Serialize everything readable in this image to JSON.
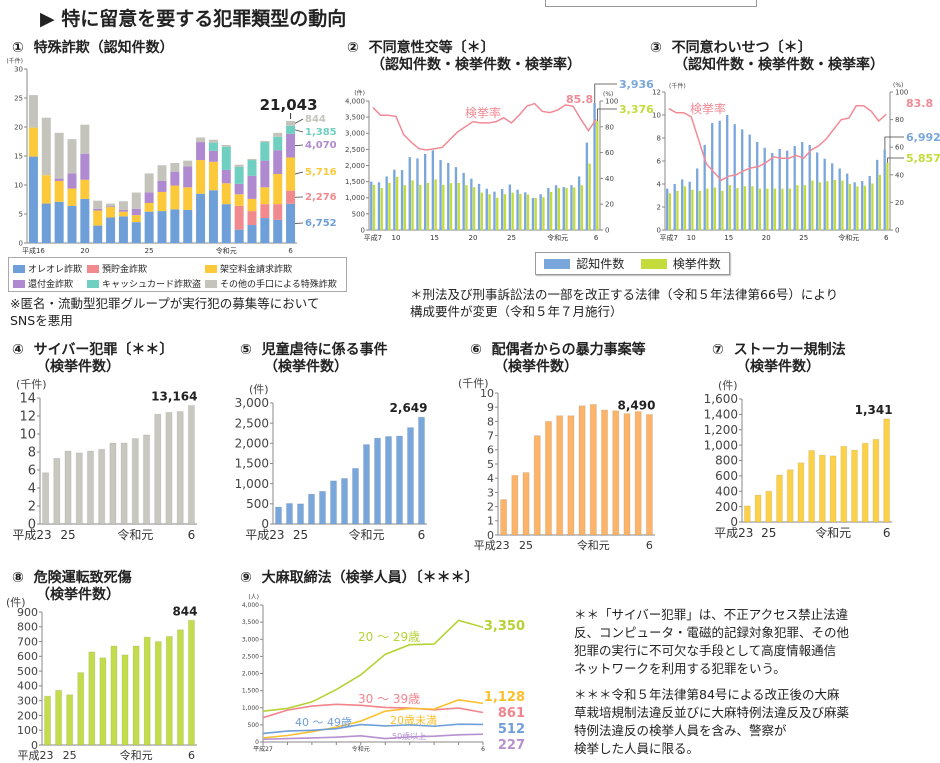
{
  "page_title": "▶ 特に留意を要する犯罪類型の動向",
  "legend_main": {
    "items": [
      {
        "label": "オレオレ詐欺",
        "color": "#6f9fd8"
      },
      {
        "label": "預貯金詐欺",
        "color": "#f08a8e"
      },
      {
        "label": "架空料金請求詐欺",
        "color": "#fcc93a"
      },
      {
        "label": "還付金詐欺",
        "color": "#b08ad0"
      },
      {
        "label": "キャッシュカード詐欺盗",
        "color": "#6fcfc0"
      },
      {
        "label": "その他の手口による特殊詐欺",
        "color": "#c4c4bc"
      }
    ]
  },
  "legend_sexual": {
    "items": [
      {
        "label": "認知件数",
        "color": "#79a7dc"
      },
      {
        "label": "検挙件数",
        "color": "#c3dc3c"
      }
    ]
  },
  "notes": {
    "fraud": [
      "※匿名・流動型犯罪グループが実行犯の募集等において",
      "SNSを悪用"
    ],
    "sexual": [
      "＊刑法及び刑事訴訟法の一部を改正する法律（令和５年法律第66号）により",
      "構成要件が変更（令和５年７月施行）"
    ],
    "cyber": [
      "＊＊「サイバー犯罪」は、不正アクセス禁止法違",
      "反、コンピュータ・電磁的記録対象犯罪、その他",
      "犯罪の実行に不可欠な手段として高度情報通信",
      "ネットワークを利用する犯罪をいう。"
    ],
    "cannabis": [
      "＊＊＊令和５年法律第84号による改正後の大麻",
      "草栽培規制法違反並びに大麻特例法違反及び麻薬",
      "特例法違反の検挙人員を含み、警察が",
      "検挙した人員に限る。"
    ]
  },
  "chart_data": [
    {
      "type": "bar",
      "stacked": true,
      "num": "①",
      "title": "特殊詐欺（認知件数）",
      "subtitle": "",
      "unit": "(千件)",
      "ylim": [
        0,
        30
      ],
      "yticks": [
        0,
        5,
        10,
        15,
        20,
        25,
        30
      ],
      "categories_count": 21,
      "xticks": [
        {
          "i": 0,
          "label": "平成16"
        },
        {
          "i": 4,
          "label": "20"
        },
        {
          "i": 9,
          "label": "25"
        },
        {
          "i": 15,
          "label": "令和元"
        },
        {
          "i": 20,
          "label": "6"
        }
      ],
      "series": [
        {
          "name": "オレオレ詐欺",
          "color": "#6f9fd8",
          "values": [
            14.9,
            6.8,
            7.1,
            6.4,
            7.6,
            3.0,
            4.4,
            4.6,
            3.6,
            5.4,
            5.5,
            5.8,
            5.7,
            8.5,
            9.1,
            6.7,
            2.3,
            3.1,
            4.3,
            4.0,
            6.752
          ],
          "end_label": "6,752"
        },
        {
          "name": "預貯金詐欺",
          "color": "#f08a8e",
          "values": [
            0,
            0,
            0,
            0,
            0,
            0,
            0,
            0,
            0,
            0,
            0,
            0,
            0,
            0,
            0,
            0,
            4.1,
            2.4,
            2.4,
            2.7,
            2.276
          ],
          "end_label": "2,276"
        },
        {
          "name": "架空料金請求詐欺",
          "color": "#fcc93a",
          "values": [
            5.0,
            4.9,
            3.6,
            3.0,
            3.3,
            2.6,
            1.8,
            0.8,
            1.2,
            1.5,
            3.3,
            4.1,
            3.9,
            5.8,
            4.9,
            3.6,
            2.0,
            2.1,
            2.9,
            5.2,
            5.716
          ],
          "end_label": "5,716"
        },
        {
          "name": "還付金詐欺",
          "color": "#b08ad0",
          "values": [
            0,
            0,
            0.4,
            2.6,
            4.5,
            0.3,
            0.1,
            0.3,
            1.1,
            1.8,
            1.9,
            2.4,
            3.6,
            3.1,
            1.9,
            2.3,
            1.8,
            4.0,
            4.6,
            4.1,
            4.07
          ],
          "end_label": "4,070"
        },
        {
          "name": "キャッシュカード詐欺盗",
          "color": "#6fcfc0",
          "values": [
            0,
            0,
            0,
            0,
            0,
            0,
            0,
            0,
            0,
            0,
            0,
            0,
            0,
            0,
            1.4,
            4.0,
            2.9,
            2.7,
            3.2,
            2.3,
            1.385
          ],
          "end_label": "1,385"
        },
        {
          "name": "その他の手口による特殊詐欺",
          "color": "#c4c4bc",
          "values": [
            5.6,
            9.9,
            7.9,
            5.9,
            5.0,
            1.4,
            0.5,
            1.5,
            2.8,
            3.3,
            2.7,
            1.5,
            1.0,
            0.8,
            0.5,
            0.3,
            0.4,
            0.2,
            0.2,
            0.7,
            0.844
          ],
          "end_label": "844"
        }
      ],
      "total_label": "21,043"
    },
    {
      "type": "bar+line",
      "num": "②",
      "title": "不同意性交等〔＊〕",
      "subtitle": "（認知件数・検挙件数・検挙率）",
      "unit": "(件)",
      "unit2": "(%)",
      "ylim": [
        0,
        4000
      ],
      "yticks": [
        0,
        500,
        1000,
        1500,
        2000,
        2500,
        3000,
        3500,
        4000
      ],
      "y2lim": [
        0,
        100
      ],
      "y2ticks": [
        0,
        20,
        40,
        60,
        80,
        100
      ],
      "categories_count": 30,
      "xticks": [
        {
          "i": 0,
          "label": "平成7"
        },
        {
          "i": 3,
          "label": "10"
        },
        {
          "i": 8,
          "label": "15"
        },
        {
          "i": 13,
          "label": "20"
        },
        {
          "i": 18,
          "label": "25"
        },
        {
          "i": 24,
          "label": "令和元"
        },
        {
          "i": 29,
          "label": "6"
        }
      ],
      "series": [
        {
          "name": "認知件数",
          "color": "#79a7dc",
          "values": [
            1500,
            1480,
            1660,
            1870,
            1860,
            2260,
            2220,
            2360,
            2470,
            2170,
            2080,
            1950,
            1770,
            1590,
            1430,
            1280,
            1190,
            1270,
            1410,
            1250,
            1170,
            990,
            1110,
            1300,
            1390,
            1330,
            1390,
            1660,
            2710,
            3936
          ],
          "end_label": "3,936"
        },
        {
          "name": "検挙件数",
          "color": "#c3dc3c",
          "values": [
            1400,
            1300,
            1460,
            1650,
            1390,
            1540,
            1400,
            1460,
            1570,
            1400,
            1450,
            1460,
            1390,
            1330,
            1160,
            1110,
            1000,
            1110,
            1160,
            1120,
            1100,
            990,
            1020,
            1180,
            1300,
            1300,
            1320,
            1390,
            2060,
            3376
          ],
          "end_label": "3,376"
        },
        {
          "name": "検挙率",
          "color": "#f28a96",
          "axis": "right",
          "values": [
            95,
            89,
            89,
            88,
            74,
            68,
            63,
            62,
            63,
            64,
            70,
            76,
            80,
            84,
            83,
            83,
            84,
            87,
            83,
            89,
            96,
            98,
            92,
            91,
            93,
            97,
            96,
            86,
            77,
            85.8
          ],
          "end_label": "85.8"
        }
      ]
    },
    {
      "type": "bar+line",
      "num": "③",
      "title": "不同意わいせつ〔＊〕",
      "subtitle": "（認知件数・検挙件数・検挙率）",
      "unit": "(千件)",
      "unit2": "(%)",
      "ylim": [
        0,
        12
      ],
      "yticks": [
        0,
        2,
        4,
        6,
        8,
        10,
        12
      ],
      "y2lim": [
        0,
        100
      ],
      "y2ticks": [
        0,
        20,
        40,
        60,
        80,
        100
      ],
      "categories_count": 30,
      "xticks": [
        {
          "i": 0,
          "label": "平成7"
        },
        {
          "i": 3,
          "label": "10"
        },
        {
          "i": 8,
          "label": "15"
        },
        {
          "i": 13,
          "label": "20"
        },
        {
          "i": 18,
          "label": "25"
        },
        {
          "i": 24,
          "label": "令和元"
        },
        {
          "i": 29,
          "label": "6"
        }
      ],
      "series": [
        {
          "name": "認知件数",
          "color": "#79a7dc",
          "values": [
            3.6,
            4.0,
            4.4,
            4.2,
            5.35,
            7.4,
            9.3,
            9.5,
            10.0,
            9.2,
            8.75,
            8.3,
            7.65,
            7.15,
            6.7,
            7.05,
            6.9,
            7.3,
            7.65,
            7.4,
            6.75,
            6.2,
            5.8,
            5.35,
            4.9,
            4.15,
            4.25,
            4.7,
            6.1,
            6.992
          ],
          "end_label": "6,992"
        },
        {
          "name": "検挙件数",
          "color": "#c3dc3c",
          "values": [
            3.2,
            3.4,
            3.8,
            3.5,
            3.4,
            3.6,
            3.7,
            3.4,
            3.9,
            3.65,
            3.8,
            3.8,
            3.6,
            3.6,
            3.6,
            3.6,
            3.6,
            3.9,
            3.9,
            4.3,
            4.15,
            4.25,
            4.35,
            4.3,
            4.0,
            3.8,
            3.85,
            4.05,
            4.8,
            5.857
          ],
          "end_label": "5,857"
        },
        {
          "name": "検挙率",
          "color": "#f28a96",
          "axis": "right",
          "values": [
            88,
            85,
            85,
            82,
            65,
            48,
            42,
            36,
            39,
            40,
            43,
            45,
            46,
            49,
            53,
            52,
            52,
            54,
            52,
            58,
            61,
            66,
            73,
            80,
            81,
            90,
            90,
            86,
            79,
            83.8
          ],
          "end_label": "83.8"
        }
      ]
    },
    {
      "type": "bar",
      "num": "④",
      "title": "サイバー犯罪〔＊＊〕",
      "subtitle": "（検挙件数）",
      "unit": "(千件)",
      "ylim": [
        0,
        14
      ],
      "yticks": [
        0,
        2,
        4,
        6,
        8,
        10,
        12,
        14
      ],
      "categories_count": 14,
      "xticks": [
        {
          "i": 0,
          "label": "平成23"
        },
        {
          "i": 2,
          "label": "25"
        },
        {
          "i": 8,
          "label": "令和元"
        },
        {
          "i": 13,
          "label": "6"
        }
      ],
      "series": [
        {
          "color": "#c8c8c0",
          "values": [
            5.7,
            7.3,
            8.1,
            7.9,
            8.1,
            8.3,
            9.0,
            9.0,
            9.5,
            9.9,
            12.2,
            12.4,
            12.5,
            13.164
          ],
          "end_label": "13,164"
        }
      ]
    },
    {
      "type": "bar",
      "num": "⑤",
      "title": "児童虐待に係る事件",
      "subtitle": "（検挙件数）",
      "unit": "(件)",
      "ylim": [
        0,
        3000
      ],
      "yticks": [
        0,
        500,
        1000,
        1500,
        2000,
        2500,
        3000
      ],
      "categories_count": 14,
      "xticks": [
        {
          "i": 0,
          "label": "平成23"
        },
        {
          "i": 2,
          "label": "25"
        },
        {
          "i": 8,
          "label": "令和元"
        },
        {
          "i": 13,
          "label": "6"
        }
      ],
      "series": [
        {
          "color": "#79a7dc",
          "values": [
            420,
            510,
            500,
            740,
            810,
            1070,
            1130,
            1380,
            1970,
            2130,
            2170,
            2180,
            2390,
            2649
          ],
          "end_label": "2,649"
        }
      ]
    },
    {
      "type": "bar",
      "num": "⑥",
      "title": "配偶者からの暴力事案等",
      "subtitle": "（検挙件数）",
      "unit": "(千件)",
      "ylim": [
        0,
        10
      ],
      "yticks": [
        0,
        1,
        2,
        3,
        4,
        5,
        6,
        7,
        8,
        9,
        10
      ],
      "categories_count": 14,
      "xticks": [
        {
          "i": 0,
          "label": "平成23"
        },
        {
          "i": 2,
          "label": "25"
        },
        {
          "i": 8,
          "label": "令和元"
        },
        {
          "i": 13,
          "label": "6"
        }
      ],
      "series": [
        {
          "color": "#fbb46a",
          "values": [
            2.5,
            4.2,
            4.4,
            7.0,
            8.0,
            8.4,
            8.4,
            9.1,
            9.2,
            8.8,
            8.75,
            8.55,
            8.7,
            8.49
          ],
          "end_label": "8,490"
        }
      ]
    },
    {
      "type": "bar",
      "num": "⑦",
      "title": "ストーカー規制法",
      "subtitle": "（検挙件数）",
      "unit": "(件)",
      "ylim": [
        0,
        1600
      ],
      "yticks": [
        0,
        200,
        400,
        600,
        800,
        1000,
        1200,
        1400,
        1600
      ],
      "categories_count": 14,
      "xticks": [
        {
          "i": 0,
          "label": "平成23"
        },
        {
          "i": 2,
          "label": "25"
        },
        {
          "i": 8,
          "label": "令和元"
        },
        {
          "i": 13,
          "label": "6"
        }
      ],
      "series": [
        {
          "color": "#fcd14a",
          "values": [
            210,
            350,
            400,
            610,
            680,
            770,
            930,
            870,
            860,
            985,
            935,
            1025,
            1075,
            1341
          ],
          "end_label": "1,341"
        }
      ]
    },
    {
      "type": "bar",
      "num": "⑧",
      "title": "危険運転致死傷",
      "subtitle": "（検挙件数）",
      "unit": "(件)",
      "ylim": [
        0,
        900
      ],
      "yticks": [
        0,
        100,
        200,
        300,
        400,
        500,
        600,
        700,
        800,
        900
      ],
      "categories_count": 14,
      "xticks": [
        {
          "i": 0,
          "label": "平成23"
        },
        {
          "i": 2,
          "label": "25"
        },
        {
          "i": 8,
          "label": "令和元"
        },
        {
          "i": 13,
          "label": "6"
        }
      ],
      "series": [
        {
          "color": "#c3dc4c",
          "values": [
            330,
            370,
            340,
            490,
            630,
            590,
            670,
            610,
            670,
            730,
            700,
            735,
            780,
            844
          ],
          "end_label": "844"
        }
      ]
    },
    {
      "type": "line",
      "num": "⑨",
      "title": "大麻取締法（検挙人員）〔＊＊＊〕",
      "subtitle": "",
      "unit": "(人)",
      "ylim": [
        0,
        4000
      ],
      "yticks": [
        0,
        500,
        1000,
        1500,
        2000,
        2500,
        3000,
        3500,
        4000
      ],
      "categories_count": 10,
      "xticks": [
        {
          "i": 0,
          "label": "平成27"
        },
        {
          "i": 4,
          "label": "令和元"
        },
        {
          "i": 9,
          "label": "6"
        }
      ],
      "series": [
        {
          "name": "20 ～ 29歳",
          "color": "#b5d334",
          "values": [
            900,
            980,
            1170,
            1530,
            1960,
            2560,
            2840,
            2860,
            3550,
            3350
          ],
          "end_label": "3,350"
        },
        {
          "name": "30 ～ 39歳",
          "color": "#f2848c",
          "values": [
            710,
            930,
            1050,
            1100,
            1070,
            1010,
            990,
            940,
            990,
            861
          ],
          "end_label": "861"
        },
        {
          "name": "20歳未満",
          "color": "#fbc02d",
          "values": [
            120,
            190,
            300,
            430,
            610,
            900,
            980,
            960,
            1230,
            1128
          ],
          "end_label": "1,128"
        },
        {
          "name": "40 ～ 49歳",
          "color": "#6f9fd8",
          "values": [
            250,
            320,
            340,
            390,
            510,
            470,
            500,
            460,
            520,
            512
          ],
          "end_label": "512"
        },
        {
          "name": "50歳以上",
          "color": "#b690d0",
          "values": [
            80,
            100,
            120,
            140,
            180,
            100,
            150,
            170,
            210,
            227
          ],
          "end_label": "227"
        }
      ]
    }
  ]
}
